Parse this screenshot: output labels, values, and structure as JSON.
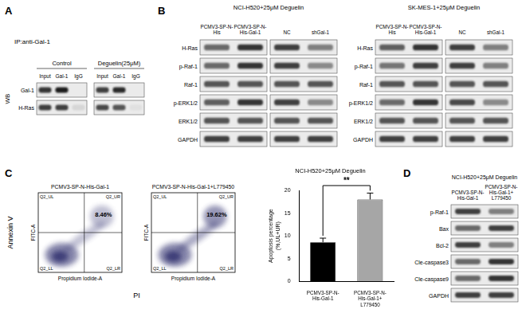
{
  "figure": {
    "panel_A": {
      "letter": "A",
      "ip_label": "IP:anti-Gal-1",
      "wb_label": "WB",
      "groups": [
        {
          "name": "Control",
          "lanes": [
            "Input",
            "Gal-1",
            "IgG"
          ]
        },
        {
          "name": "Deguelin(25μM)",
          "lanes": [
            "Input",
            "Gal-1",
            "IgG"
          ]
        }
      ],
      "rows": [
        {
          "label": "Gal-1",
          "bands": [
            0.85,
            0.95,
            0,
            0.8,
            0.9,
            0
          ]
        },
        {
          "label": "H-Ras",
          "bands": [
            0.8,
            0.8,
            0.1,
            0.75,
            0.7,
            0.05
          ]
        }
      ]
    },
    "panel_B": {
      "letter": "B",
      "blots": [
        {
          "title": "NCI-H520+25μM Deguelin",
          "lanes": [
            "PCMV3-SP-N-His",
            "PCMV3-SP-N-His-Gal-1",
            "NC",
            "shGal-1"
          ],
          "rows": [
            {
              "label": "H-Ras",
              "bands": [
                0.6,
                0.85,
                0.8,
                0.5
              ]
            },
            {
              "label": "p-Raf-1",
              "bands": [
                0.6,
                0.85,
                0.8,
                0.45
              ]
            },
            {
              "label": "Raf-1",
              "bands": [
                0.7,
                0.7,
                0.7,
                0.7
              ]
            },
            {
              "label": "p-ERK1/2",
              "bands": [
                0.65,
                0.85,
                0.8,
                0.45
              ]
            },
            {
              "label": "ERK1/2",
              "bands": [
                0.7,
                0.7,
                0.7,
                0.7
              ]
            },
            {
              "label": "GAPDH",
              "bands": [
                0.8,
                0.8,
                0.8,
                0.8
              ]
            }
          ]
        },
        {
          "title": "SK-MES-1+25μM Deguelin",
          "lanes": [
            "PCMV3-SP-N-His",
            "PCMV3-SP-N-His-Gal-1",
            "NC",
            "shGal-1"
          ],
          "rows": [
            {
              "label": "H-Ras",
              "bands": [
                0.65,
                0.85,
                0.8,
                0.5
              ]
            },
            {
              "label": "p-Raf-1",
              "bands": [
                0.55,
                0.8,
                0.8,
                0.5
              ]
            },
            {
              "label": "Raf-1",
              "bands": [
                0.7,
                0.7,
                0.7,
                0.7
              ]
            },
            {
              "label": "p-ERK1/2",
              "bands": [
                0.6,
                0.85,
                0.75,
                0.45
              ]
            },
            {
              "label": "ERK1/2",
              "bands": [
                0.7,
                0.7,
                0.7,
                0.7
              ]
            },
            {
              "label": "GAPDH",
              "bands": [
                0.8,
                0.8,
                0.8,
                0.8
              ]
            }
          ]
        }
      ]
    },
    "panel_C": {
      "letter": "C",
      "y_label": "Annexin V",
      "x_label": "PI",
      "plots": [
        {
          "title": "PCMV3-SP-N-His-Gal-1",
          "quadrants": [
            "Q2_UL",
            "Q2_UR",
            "Q2_LL",
            "Q2_LR"
          ],
          "percent": "8.46%",
          "x_axis": "Propidium Iodide-A",
          "y_axis": "FITC-A"
        },
        {
          "title": "PCMV3-SP-N-His-Gal-1+L779450",
          "quadrants": [
            "Q2_UL",
            "Q2_UR",
            "Q2_LL",
            "Q2_LR"
          ],
          "percent": "19.62%",
          "x_axis": "Propidium Iodide-A",
          "y_axis": "FITC-A"
        }
      ]
    },
    "panel_D": {
      "letter": "D",
      "title": "NCI-H520+25μM Deguelin",
      "lanes": [
        "PCMV3-SP-N-His-Gal-1",
        "PCMV3-SP-N-His-Gal-1+L779450"
      ],
      "rows": [
        {
          "label": "p-Raf-1",
          "bands": [
            0.8,
            0.5
          ]
        },
        {
          "label": "Bax",
          "bands": [
            0.6,
            0.8
          ]
        },
        {
          "label": "Bcl-2",
          "bands": [
            0.8,
            0.5
          ]
        },
        {
          "label": "Cle-caspase3",
          "bands": [
            0.6,
            0.85
          ]
        },
        {
          "label": "Cle-caspase9",
          "bands": [
            0.6,
            0.85
          ]
        },
        {
          "label": "GAPDH",
          "bands": [
            0.8,
            0.8
          ]
        }
      ]
    }
  },
  "chart_data": {
    "type": "bar",
    "title": "NCI-H520+25μM Deguelin",
    "categories": [
      "PCMV3-SP-N-His-Gal-1",
      "PCMV3-SP-N-His-Gal-1+L779450"
    ],
    "values": [
      8.6,
      18.0
    ],
    "errors": [
      0.9,
      1.4
    ],
    "colors": [
      "#000000",
      "#a6a6a6"
    ],
    "y_label": "Apoptosis percentage (%,UL+UR)",
    "ylim": [
      0,
      20
    ],
    "yticks": [
      0,
      5,
      10,
      15,
      20
    ],
    "annotation": "**",
    "grid": false
  }
}
